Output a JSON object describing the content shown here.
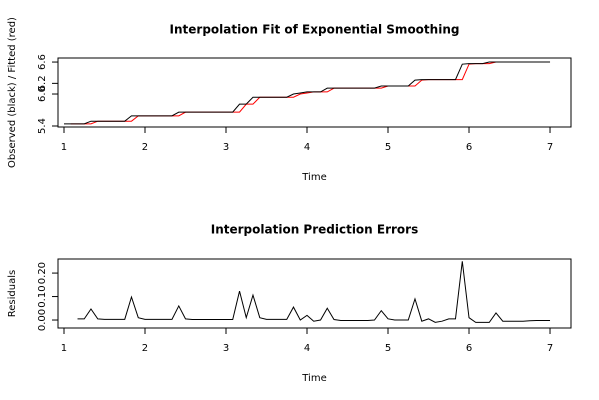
{
  "chart_data": [
    {
      "type": "line",
      "title": "Interpolation Fit of Exponential Smoothing",
      "x_label": "Time",
      "y_label": "Observed (black) / Fitted (red)",
      "x": [
        1,
        1.083,
        1.167,
        1.25,
        1.333,
        1.417,
        1.5,
        1.583,
        1.667,
        1.75,
        1.833,
        1.917,
        2,
        2.083,
        2.167,
        2.25,
        2.333,
        2.417,
        2.5,
        2.583,
        2.667,
        2.75,
        2.833,
        2.917,
        3,
        3.083,
        3.167,
        3.25,
        3.333,
        3.417,
        3.5,
        3.583,
        3.667,
        3.75,
        3.833,
        3.917,
        4,
        4.083,
        4.167,
        4.25,
        4.333,
        4.417,
        4.5,
        4.583,
        4.667,
        4.75,
        4.833,
        4.917,
        5,
        5.083,
        5.167,
        5.25,
        5.333,
        5.417,
        5.5,
        5.583,
        5.667,
        5.75,
        5.833,
        5.917,
        6,
        6.083,
        6.167,
        6.25,
        6.333,
        6.417,
        6.5,
        6.583,
        6.667,
        6.75,
        6.833,
        6.917,
        7
      ],
      "series": [
        {
          "color": "#000000",
          "values": [
            5.44,
            5.44,
            5.44,
            5.44,
            5.49,
            5.49,
            5.49,
            5.49,
            5.49,
            5.49,
            5.59,
            5.59,
            5.59,
            5.59,
            5.59,
            5.59,
            5.59,
            5.66,
            5.66,
            5.66,
            5.66,
            5.66,
            5.66,
            5.66,
            5.66,
            5.66,
            5.81,
            5.81,
            5.94,
            5.94,
            5.94,
            5.94,
            5.94,
            5.94,
            6.0,
            6.02,
            6.04,
            6.04,
            6.04,
            6.11,
            6.11,
            6.11,
            6.11,
            6.11,
            6.11,
            6.11,
            6.11,
            6.15,
            6.15,
            6.15,
            6.15,
            6.15,
            6.26,
            6.27,
            6.27,
            6.27,
            6.27,
            6.27,
            6.27,
            6.56,
            6.57,
            6.57,
            6.57,
            6.6,
            6.6,
            6.6,
            6.6,
            6.6,
            6.6,
            6.6,
            6.6,
            6.6,
            6.6
          ]
        },
        {
          "color": "#ff0000",
          "values": [
            null,
            5.44,
            5.44,
            5.44,
            5.44,
            5.49,
            5.49,
            5.49,
            5.49,
            5.49,
            5.49,
            5.59,
            5.59,
            5.59,
            5.59,
            5.59,
            5.59,
            5.59,
            5.66,
            5.66,
            5.66,
            5.66,
            5.66,
            5.66,
            5.66,
            5.66,
            5.66,
            5.81,
            5.81,
            5.94,
            5.94,
            5.94,
            5.94,
            5.94,
            5.94,
            6.0,
            6.02,
            6.04,
            6.04,
            6.04,
            6.11,
            6.11,
            6.11,
            6.11,
            6.11,
            6.11,
            6.11,
            6.11,
            6.15,
            6.15,
            6.15,
            6.15,
            6.15,
            6.26,
            6.27,
            6.27,
            6.27,
            6.27,
            6.27,
            6.27,
            6.56,
            6.57,
            6.57,
            6.57,
            6.6,
            6.6,
            6.6,
            6.6,
            6.6,
            6.6,
            6.6,
            6.6,
            6.6
          ]
        }
      ],
      "xlim": [
        0.926,
        7.259
      ],
      "xticks": [
        1,
        2,
        3,
        4,
        5,
        6,
        7
      ],
      "ylim": [
        5.381,
        6.676
      ],
      "yticks": [
        5.4,
        {
          "value": 6,
          "label": "6.0"
        },
        6.2,
        6.6
      ]
    },
    {
      "type": "line",
      "title": "Interpolation Prediction Errors",
      "x_label": "Time",
      "y_label": "Residuals",
      "x": [
        1,
        1.083,
        1.167,
        1.25,
        1.333,
        1.417,
        1.5,
        1.583,
        1.667,
        1.75,
        1.833,
        1.917,
        2,
        2.083,
        2.167,
        2.25,
        2.333,
        2.417,
        2.5,
        2.583,
        2.667,
        2.75,
        2.833,
        2.917,
        3,
        3.083,
        3.167,
        3.25,
        3.333,
        3.417,
        3.5,
        3.583,
        3.667,
        3.75,
        3.833,
        3.917,
        4,
        4.083,
        4.167,
        4.25,
        4.333,
        4.417,
        4.5,
        4.583,
        4.667,
        4.75,
        4.833,
        4.917,
        5,
        5.083,
        5.167,
        5.25,
        5.333,
        5.417,
        5.5,
        5.583,
        5.667,
        5.75,
        5.833,
        5.917,
        6,
        6.083,
        6.167,
        6.25,
        6.333,
        6.417,
        6.5,
        6.583,
        6.667,
        6.75,
        6.833,
        6.917,
        7
      ],
      "color": "#000000",
      "values": [
        null,
        null,
        0.005,
        0.005,
        0.047,
        0.005,
        0.003,
        0.003,
        0.003,
        0.003,
        0.098,
        0.01,
        0.003,
        0.003,
        0.003,
        0.003,
        0.003,
        0.06,
        0.005,
        0.002,
        0.002,
        0.002,
        0.002,
        0.002,
        0.002,
        0.002,
        0.123,
        0.01,
        0.106,
        0.01,
        0.003,
        0.003,
        0.003,
        0.003,
        0.055,
        0,
        0.02,
        -0.005,
        0,
        0.05,
        0.002,
        -0.002,
        -0.002,
        -0.002,
        -0.002,
        -0.002,
        0,
        0.04,
        0.005,
        0,
        0,
        0,
        0.09,
        -0.005,
        0.005,
        -0.01,
        -0.005,
        0.005,
        0.005,
        0.25,
        0.01,
        -0.01,
        -0.01,
        -0.01,
        0.03,
        -0.005,
        -0.005,
        -0.005,
        -0.005,
        -0.003,
        -0.002,
        -0.002,
        -0.002
      ],
      "xlim": [
        0.926,
        7.259
      ],
      "xticks": [
        1,
        2,
        3,
        4,
        5,
        6,
        7
      ],
      "ylim": [
        -0.034,
        0.26
      ],
      "yticks": [
        {
          "value": 0,
          "label": "0.00"
        },
        {
          "value": 0.1,
          "label": "0.10"
        },
        {
          "value": 0.2,
          "label": "0.20"
        }
      ]
    }
  ]
}
